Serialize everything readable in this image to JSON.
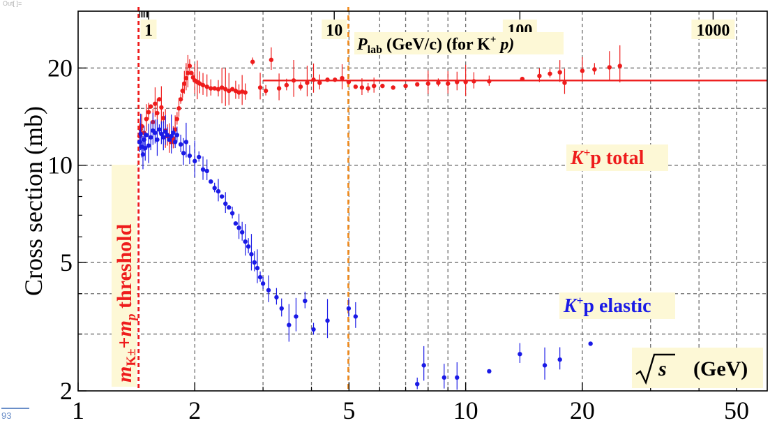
{
  "notebook": {
    "out_label": "Out[ ]=",
    "cell_number": "93"
  },
  "chart_data": {
    "type": "scatter",
    "title": "",
    "ylabel": "Cross section (mb)",
    "xscale": "log",
    "yscale": "log",
    "xlim": [
      1,
      60
    ],
    "ylim": [
      2,
      30
    ],
    "grid": true,
    "x_ticks": [
      "1",
      "2",
      "5",
      "10",
      "20",
      "50"
    ],
    "y_ticks": [
      "2",
      "5",
      "10",
      "20"
    ],
    "top_axis": {
      "label_main": "P",
      "label_sub": "lab",
      "label_rest": " (GeV/c) (for K",
      "label_sup": "+",
      "label_end": "p)",
      "ticks": [
        "1",
        "10",
        "100",
        "1000"
      ]
    },
    "x_axis_label": {
      "text": "s",
      "unit": "(GeV)"
    },
    "threshold": {
      "x": 1.432,
      "label_text": "m",
      "sub_k": "K±",
      "plus": "+",
      "sub_p": "p",
      "tail": "threshold"
    },
    "orange_line_x": 4.98,
    "colors": {
      "total": "#ee1c1c",
      "elastic": "#1a1ae6",
      "threshold": "#ee1c1c",
      "orange": "#f08a1c",
      "label_bg": "#fdf8d6"
    },
    "series": [
      {
        "name": "K⁺p total",
        "label_parts": {
          "k": "K",
          "sup": "+",
          "rest": "p total"
        },
        "fit": {
          "x": [
            3.0,
            60
          ],
          "y": 18.3
        },
        "points": [
          [
            1.44,
            12.3
          ],
          [
            1.45,
            12.9
          ],
          [
            1.46,
            13.2
          ],
          [
            1.48,
            12.6
          ],
          [
            1.5,
            13.9
          ],
          [
            1.52,
            14.6
          ],
          [
            1.54,
            15.2
          ],
          [
            1.56,
            13.6
          ],
          [
            1.58,
            15.5
          ],
          [
            1.6,
            14.5
          ],
          [
            1.62,
            16.0
          ],
          [
            1.64,
            15.1
          ],
          [
            1.66,
            14.0
          ],
          [
            1.68,
            12.8
          ],
          [
            1.7,
            12.3
          ],
          [
            1.72,
            12.0
          ],
          [
            1.74,
            11.8
          ],
          [
            1.76,
            12.1
          ],
          [
            1.78,
            12.9
          ],
          [
            1.8,
            13.9
          ],
          [
            1.82,
            15.0
          ],
          [
            1.84,
            16.0
          ],
          [
            1.86,
            17.0
          ],
          [
            1.88,
            17.9
          ],
          [
            1.9,
            18.6
          ],
          [
            1.92,
            19.3
          ],
          [
            1.94,
            20.3
          ],
          [
            1.96,
            19.3
          ],
          [
            1.98,
            18.7
          ],
          [
            2.0,
            18.3
          ],
          [
            2.03,
            18.1
          ],
          [
            2.06,
            17.9
          ],
          [
            2.1,
            17.7
          ],
          [
            2.15,
            17.5
          ],
          [
            2.2,
            17.3
          ],
          [
            2.25,
            17.3
          ],
          [
            2.3,
            17.2
          ],
          [
            2.35,
            17.4
          ],
          [
            2.4,
            17.2
          ],
          [
            2.45,
            17.0
          ],
          [
            2.5,
            17.2
          ],
          [
            2.55,
            17.0
          ],
          [
            2.6,
            16.8
          ],
          [
            2.65,
            16.9
          ],
          [
            2.7,
            16.8
          ],
          [
            2.82,
            20.9
          ],
          [
            2.95,
            17.4
          ],
          [
            3.05,
            17.0
          ],
          [
            3.15,
            21.2
          ],
          [
            3.3,
            17.3
          ],
          [
            3.45,
            17.7
          ],
          [
            3.6,
            18.3
          ],
          [
            3.75,
            17.5
          ],
          [
            3.9,
            18.0
          ],
          [
            4.05,
            18.4
          ],
          [
            4.2,
            18.0
          ],
          [
            4.4,
            18.4
          ],
          [
            4.6,
            18.4
          ],
          [
            4.8,
            18.6
          ],
          [
            4.99,
            18.1
          ],
          [
            5.2,
            17.5
          ],
          [
            5.4,
            17.4
          ],
          [
            5.6,
            17.3
          ],
          [
            5.8,
            17.6
          ],
          [
            6.1,
            17.6
          ],
          [
            6.5,
            17.4
          ],
          [
            7.0,
            17.6
          ],
          [
            7.5,
            17.8
          ],
          [
            8.0,
            17.9
          ],
          [
            8.5,
            18.0
          ],
          [
            9.0,
            17.9
          ],
          [
            9.5,
            18.1
          ],
          [
            10.0,
            18.1
          ],
          [
            10.5,
            18.2
          ],
          [
            11.5,
            18.2
          ],
          [
            14.0,
            18.5
          ],
          [
            15.5,
            18.9
          ],
          [
            16.5,
            19.2
          ],
          [
            17.5,
            19.4
          ],
          [
            18.0,
            18.0
          ],
          [
            20.0,
            19.6
          ],
          [
            21.5,
            19.8
          ],
          [
            23.5,
            20.1
          ],
          [
            25.0,
            20.3
          ]
        ]
      },
      {
        "name": "K⁺p elastic",
        "label_parts": {
          "k": "K",
          "sup": "+",
          "rest": "p elastic"
        },
        "points": [
          [
            1.44,
            11.8
          ],
          [
            1.45,
            12.5
          ],
          [
            1.46,
            11.4
          ],
          [
            1.47,
            10.8
          ],
          [
            1.48,
            12.0
          ],
          [
            1.49,
            11.3
          ],
          [
            1.5,
            12.4
          ],
          [
            1.52,
            11.5
          ],
          [
            1.54,
            12.2
          ],
          [
            1.56,
            12.8
          ],
          [
            1.58,
            12.6
          ],
          [
            1.6,
            12.0
          ],
          [
            1.62,
            12.9
          ],
          [
            1.64,
            12.5
          ],
          [
            1.66,
            12.2
          ],
          [
            1.68,
            12.7
          ],
          [
            1.7,
            12.4
          ],
          [
            1.72,
            12.0
          ],
          [
            1.74,
            12.3
          ],
          [
            1.76,
            12.6
          ],
          [
            1.78,
            11.8
          ],
          [
            1.8,
            12.4
          ],
          [
            1.84,
            11.6
          ],
          [
            1.87,
            10.9
          ],
          [
            1.9,
            11.8
          ],
          [
            1.94,
            10.7
          ],
          [
            2.0,
            10.3
          ],
          [
            2.05,
            10.6
          ],
          [
            2.1,
            9.7
          ],
          [
            2.15,
            9.6
          ],
          [
            2.2,
            8.9
          ],
          [
            2.25,
            8.5
          ],
          [
            2.3,
            8.3
          ],
          [
            2.35,
            8.0
          ],
          [
            2.4,
            7.6
          ],
          [
            2.45,
            7.4
          ],
          [
            2.5,
            7.1
          ],
          [
            2.55,
            6.6
          ],
          [
            2.6,
            6.4
          ],
          [
            2.65,
            6.2
          ],
          [
            2.7,
            5.8
          ],
          [
            2.75,
            5.6
          ],
          [
            2.8,
            5.3
          ],
          [
            2.85,
            5.0
          ],
          [
            2.9,
            4.8
          ],
          [
            2.95,
            4.5
          ],
          [
            3.0,
            4.3
          ],
          [
            3.1,
            4.1
          ],
          [
            3.25,
            3.9
          ],
          [
            3.35,
            3.6
          ],
          [
            3.5,
            3.2
          ],
          [
            3.65,
            3.4
          ],
          [
            3.85,
            3.8
          ],
          [
            4.05,
            3.1
          ],
          [
            4.4,
            3.3
          ],
          [
            4.99,
            3.6
          ],
          [
            5.2,
            3.4
          ],
          [
            7.5,
            2.1
          ],
          [
            7.8,
            2.4
          ],
          [
            8.8,
            2.2
          ],
          [
            9.5,
            2.2
          ],
          [
            11.5,
            2.3
          ],
          [
            13.8,
            2.6
          ],
          [
            16.0,
            2.4
          ],
          [
            17.5,
            2.5
          ],
          [
            21.0,
            2.8
          ]
        ]
      }
    ]
  }
}
